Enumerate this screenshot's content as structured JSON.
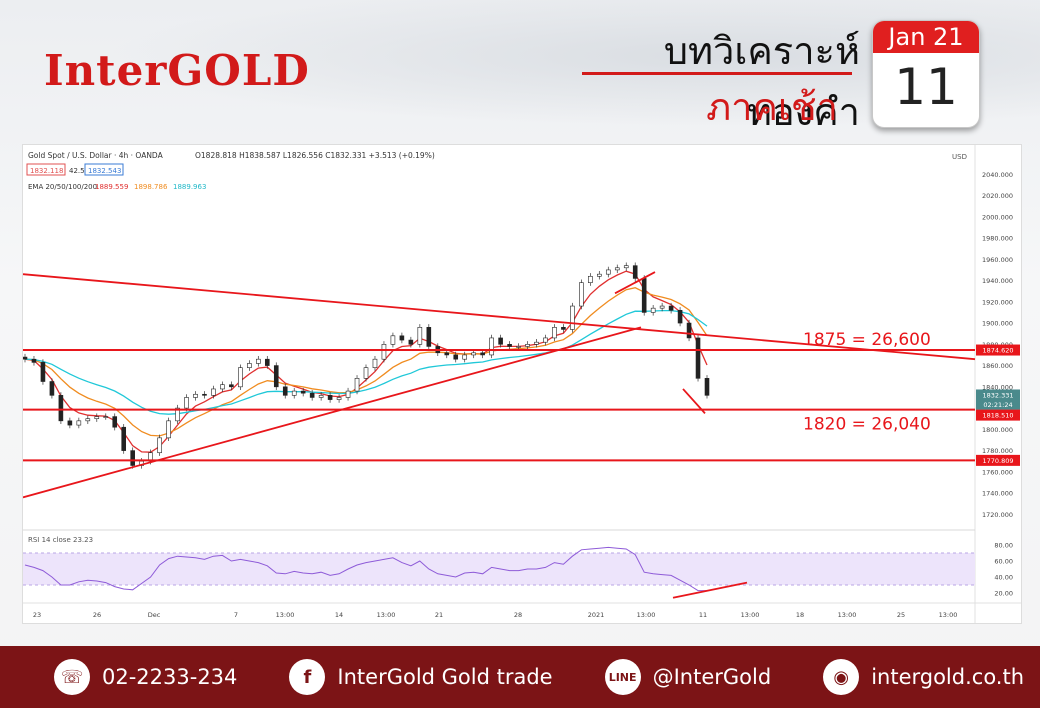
{
  "brand": {
    "logo": "InterGOLD"
  },
  "header": {
    "title_line1": "บทวิเคราะห์ทองคำ",
    "title_line2": "ภาคเช้า"
  },
  "calendar": {
    "month_year": "Jan 21",
    "day": "11"
  },
  "colors": {
    "brand_red": "#d21a1a",
    "footer_bg": "#7c1416",
    "rsi_fill": "#ede4fb"
  },
  "chart_data": {
    "type": "line",
    "legend": {
      "symbol": "Gold Spot / U.S. Dollar · 4h · OANDA",
      "ohlc": "O1828.818 H1838.587 L1826.556 C1832.331 +3.513 (+0.19%)",
      "bid": "1832.118",
      "spread": "42.5",
      "ask": "1832.543",
      "ema": "EMA 20/50/100/200",
      "ema20": "1889.559",
      "ema50": "1898.786",
      "ema100": "1889.963",
      "currency": "USD",
      "rsi": "RSI 14 close  23.23"
    },
    "y_axis": {
      "ticks": [
        "2040.000",
        "2020.000",
        "2000.000",
        "1980.000",
        "1960.000",
        "1940.000",
        "1920.000",
        "1900.000",
        "1880.000",
        "1860.000",
        "1840.000",
        "1800.000",
        "1780.000",
        "1760.000",
        "1740.000",
        "1720.000"
      ],
      "ylim": [
        1710,
        2060
      ]
    },
    "x_axis": {
      "labels": [
        "23",
        "26",
        "Dec",
        "7",
        "13:00",
        "14",
        "13:00",
        "21",
        "28",
        "2021",
        "13:00",
        "11",
        "13:00",
        "18",
        "13:00",
        "25",
        "13:00"
      ]
    },
    "price_labels": {
      "current": "1832.331",
      "countdown": "02:21:24",
      "lvl1874": "1874.620",
      "lvl1818": "1818.510",
      "lvl1770": "1770.809"
    },
    "levels": [
      1874.62,
      1818.51,
      1770.809
    ],
    "annotations": [
      "1875 = 26,600",
      "1820 = 26,040"
    ],
    "close_series": [
      1866,
      1863,
      1845,
      1832,
      1808,
      1804,
      1808,
      1810,
      1812,
      1812,
      1802,
      1780,
      1766,
      1770,
      1778,
      1792,
      1808,
      1820,
      1830,
      1833,
      1832,
      1838,
      1842,
      1840,
      1858,
      1862,
      1866,
      1860,
      1840,
      1832,
      1836,
      1834,
      1830,
      1832,
      1828,
      1830,
      1836,
      1848,
      1858,
      1866,
      1880,
      1888,
      1884,
      1880,
      1896,
      1878,
      1872,
      1870,
      1866,
      1870,
      1872,
      1870,
      1886,
      1880,
      1878,
      1878,
      1880,
      1882,
      1886,
      1896,
      1894,
      1916,
      1938,
      1944,
      1946,
      1950,
      1952,
      1954,
      1942,
      1910,
      1914,
      1916,
      1912,
      1900,
      1886,
      1848,
      1832
    ]
  },
  "rsi": {
    "ticks": [
      "80.00",
      "60.00",
      "40.00",
      "20.00"
    ],
    "values": [
      55,
      52,
      48,
      40,
      30,
      30,
      34,
      36,
      35,
      33,
      28,
      25,
      24,
      32,
      40,
      55,
      63,
      66,
      65,
      64,
      62,
      66,
      67,
      60,
      62,
      60,
      58,
      54,
      45,
      44,
      47,
      45,
      44,
      46,
      42,
      44,
      50,
      55,
      58,
      60,
      62,
      64,
      58,
      54,
      60,
      50,
      44,
      42,
      40,
      45,
      46,
      44,
      52,
      50,
      48,
      48,
      50,
      50,
      52,
      58,
      56,
      66,
      74,
      75,
      76,
      77,
      76,
      75,
      68,
      46,
      44,
      43,
      42,
      36,
      30,
      23,
      23
    ]
  },
  "footer": {
    "phone": "02-2233-234",
    "facebook": "InterGold Gold trade",
    "line": "@InterGold",
    "website": "intergold.co.th",
    "line_icon_text": "LINE"
  }
}
